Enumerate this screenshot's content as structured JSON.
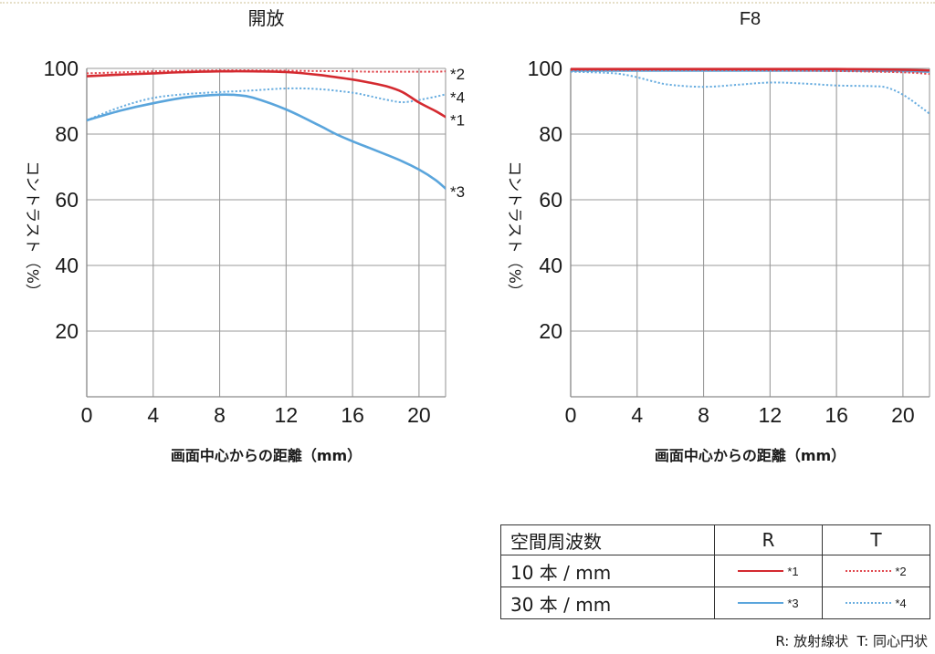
{
  "chart_data": [
    {
      "type": "line",
      "title": "開放",
      "xlabel": "画面中心からの距離（mm）",
      "ylabel": "コントラスト（%）",
      "xlim": [
        0,
        21.6
      ],
      "ylim": [
        0,
        100
      ],
      "x_ticks": [
        0,
        4,
        8,
        12,
        16,
        20
      ],
      "y_ticks": [
        20,
        40,
        60,
        80,
        100
      ],
      "grid": true,
      "series": [
        {
          "name": "*1",
          "color": "#d42a30",
          "dotted": false,
          "x": [
            0,
            2,
            4,
            6,
            8,
            10,
            12,
            14,
            16,
            17,
            18,
            19,
            20,
            21,
            21.6
          ],
          "y": [
            97.6,
            98.1,
            98.5,
            98.9,
            99.1,
            99.1,
            98.9,
            98.0,
            96.6,
            95.7,
            94.6,
            92.8,
            89.6,
            87.0,
            85.2
          ]
        },
        {
          "name": "*2",
          "color": "#e0474e",
          "dotted": true,
          "x": [
            0,
            2,
            4,
            6,
            8,
            10,
            12,
            14,
            16,
            17,
            18,
            19,
            20,
            21,
            21.6
          ],
          "y": [
            98.5,
            98.8,
            99.1,
            99.3,
            99.4,
            99.4,
            99.3,
            99.2,
            99.1,
            99.0,
            99.0,
            99.0,
            99.0,
            99.0,
            99.1
          ]
        },
        {
          "name": "*3",
          "color": "#5aa5dc",
          "dotted": false,
          "x": [
            0,
            2,
            4,
            6,
            8,
            9,
            10,
            12,
            14,
            15,
            16,
            17,
            18,
            19,
            20,
            21,
            21.6
          ],
          "y": [
            84.2,
            87.1,
            89.4,
            91.2,
            92.0,
            91.9,
            91.1,
            87.5,
            82.6,
            80.0,
            77.8,
            75.8,
            73.8,
            71.7,
            69.2,
            66.0,
            63.4
          ]
        },
        {
          "name": "*4",
          "color": "#6aaee0",
          "dotted": true,
          "x": [
            0,
            2,
            4,
            6,
            8,
            10,
            12,
            14,
            16,
            17,
            18,
            19,
            20,
            21,
            21.6
          ],
          "y": [
            84.2,
            88.2,
            91.0,
            92.2,
            92.8,
            93.3,
            93.9,
            93.7,
            92.6,
            91.6,
            90.5,
            89.7,
            90.4,
            91.4,
            92.1
          ]
        }
      ]
    },
    {
      "type": "line",
      "title": "F8",
      "xlabel": "画面中心からの距離（mm）",
      "ylabel": "コントラスト（%）",
      "xlim": [
        0,
        21.6
      ],
      "ylim": [
        0,
        100
      ],
      "x_ticks": [
        0,
        4,
        8,
        12,
        16,
        20
      ],
      "y_ticks": [
        20,
        40,
        60,
        80,
        100
      ],
      "grid": true,
      "series": [
        {
          "color": "#d42a30",
          "dotted": false,
          "x": [
            0,
            4,
            8,
            12,
            16,
            20,
            21.6
          ],
          "y": [
            99.8,
            99.8,
            99.8,
            99.8,
            99.8,
            99.6,
            99.4
          ]
        },
        {
          "color": "#e0474e",
          "dotted": true,
          "x": [
            0,
            4,
            8,
            12,
            16,
            20,
            21.6
          ],
          "y": [
            99.5,
            99.5,
            99.5,
            99.4,
            99.2,
            98.8,
            98.3
          ]
        },
        {
          "color": "#5aa5dc",
          "dotted": false,
          "x": [
            0,
            4,
            8,
            12,
            16,
            20,
            21.6
          ],
          "y": [
            99.3,
            99.3,
            99.3,
            99.3,
            99.3,
            99.2,
            99.0
          ]
        },
        {
          "color": "#6aaee0",
          "dotted": true,
          "x": [
            0,
            2,
            3,
            4,
            5,
            6,
            8,
            10,
            12,
            14,
            16,
            18,
            19,
            20,
            21,
            21.6
          ],
          "y": [
            99.0,
            98.7,
            98.3,
            97.3,
            96.0,
            95.0,
            94.4,
            95.0,
            95.7,
            95.4,
            94.8,
            94.6,
            94.2,
            92.0,
            88.5,
            86.2
          ]
        }
      ]
    }
  ],
  "legend": {
    "header": [
      "空間周波数",
      "R",
      "T"
    ],
    "rows": [
      {
        "label": "10 本 / mm",
        "r_mark": "*1",
        "r_color": "#d42a30",
        "t_mark": "*2",
        "t_color": "#e0474e"
      },
      {
        "label": "30 本 / mm",
        "r_mark": "*3",
        "r_color": "#5aa5dc",
        "t_mark": "*4",
        "t_color": "#6aaee0"
      }
    ]
  },
  "footnote": "R: 放射線状  T: 同心円状"
}
